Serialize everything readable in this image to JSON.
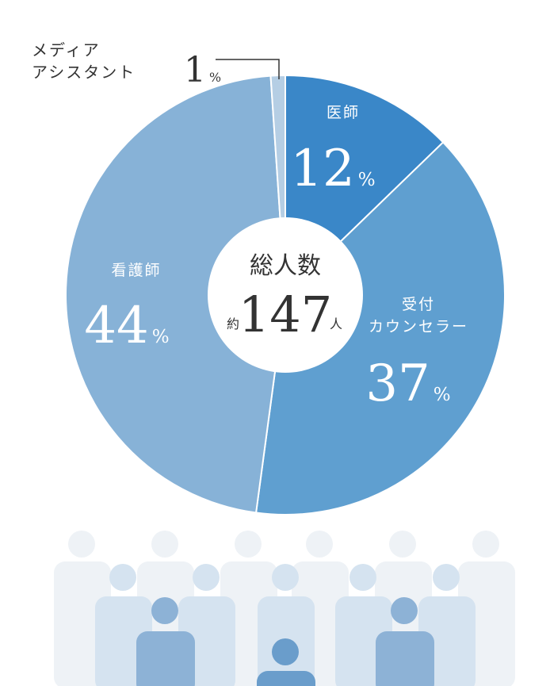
{
  "chart_data": {
    "type": "pie",
    "categories": [
      [
        "医師"
      ],
      [
        "受付",
        "カウンセラー"
      ],
      [
        "看護師"
      ],
      [
        "メディア",
        "アシスタント"
      ]
    ],
    "values": [
      12,
      37,
      44,
      1
    ],
    "unit": "%",
    "colors": [
      "#3a87c8",
      "#5f9fd0",
      "#87b2d7",
      "#b5cee4"
    ],
    "center": {
      "title": "総人数",
      "prefix": "約",
      "value": 147,
      "suffix": "人"
    }
  }
}
